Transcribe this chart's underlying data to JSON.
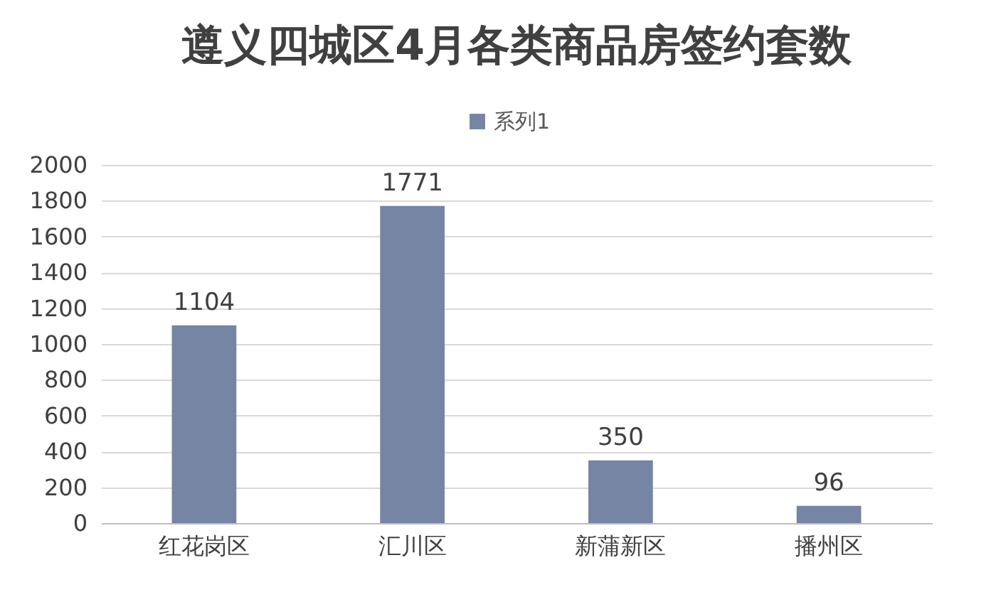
{
  "chart_data": {
    "type": "bar",
    "title": "遵义四城区4月各类商品房签约套数",
    "categories": [
      "红花岗区",
      "汇川区",
      "新蒲新区",
      "播州区"
    ],
    "series": [
      {
        "name": "系列1",
        "color": "#7585a3",
        "values": [
          1104,
          1771,
          350,
          96
        ]
      }
    ],
    "ylim": [
      0,
      2000
    ],
    "yticks": [
      0,
      200,
      400,
      600,
      800,
      1000,
      1200,
      1400,
      1600,
      1800,
      2000
    ],
    "grid": "y",
    "legend": "top",
    "data_labels": true
  }
}
